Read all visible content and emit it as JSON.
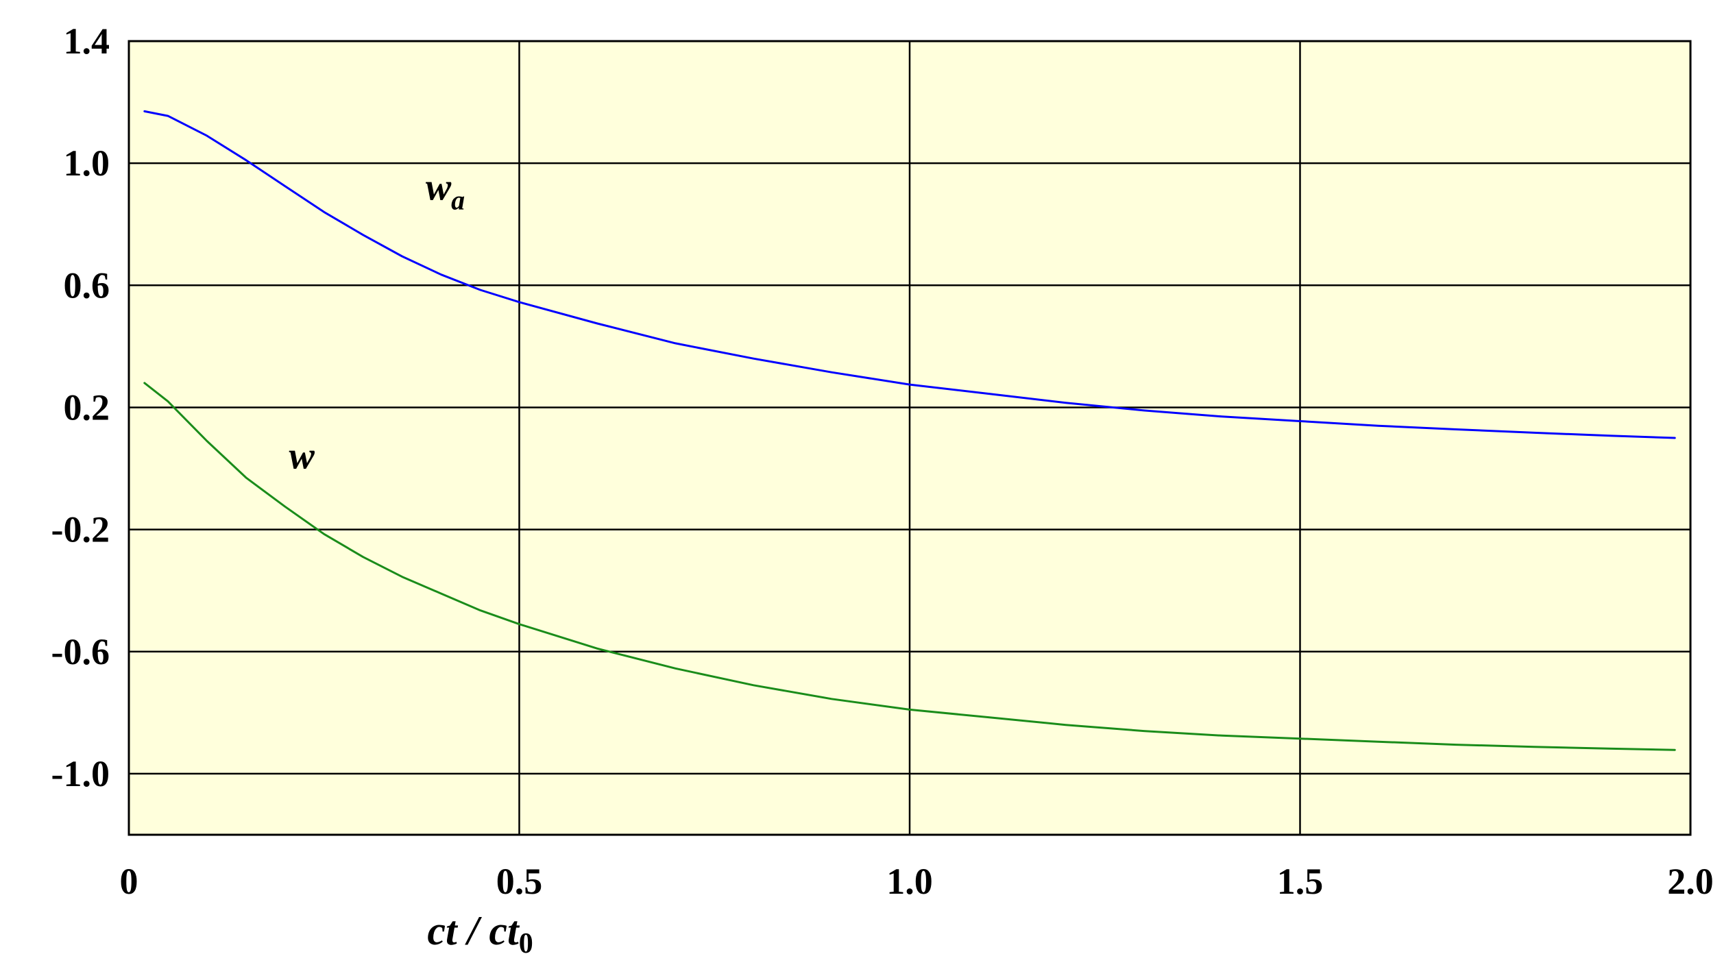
{
  "chart_data": {
    "type": "line",
    "title": "",
    "xlabel": {
      "prefix": "ct / ct",
      "subscript": "0"
    },
    "ylabel": "",
    "xlim": [
      0,
      2.0
    ],
    "ylim": [
      -1.2,
      1.4
    ],
    "x_ticks": [
      {
        "value": 0,
        "label": "0"
      },
      {
        "value": 0.5,
        "label": "0.5"
      },
      {
        "value": 1.0,
        "label": "1.0"
      },
      {
        "value": 1.5,
        "label": "1.5"
      },
      {
        "value": 2.0,
        "label": "2.0"
      }
    ],
    "y_ticks": [
      {
        "value": 1.4,
        "label": "1.4"
      },
      {
        "value": 1.0,
        "label": "1.0"
      },
      {
        "value": 0.6,
        "label": "0.6"
      },
      {
        "value": 0.2,
        "label": "0.2"
      },
      {
        "value": -0.2,
        "label": "-0.2"
      },
      {
        "value": -0.6,
        "label": "-0.6"
      },
      {
        "value": -1.0,
        "label": "-1.0"
      }
    ],
    "grid": true,
    "background_color": "#ffffdc",
    "series": [
      {
        "name": "w",
        "name_subscript": "a",
        "color": "#0000ff",
        "label_anchor": {
          "x": 0.38,
          "y": 0.88
        },
        "points": [
          [
            0.02,
            1.17
          ],
          [
            0.05,
            1.155
          ],
          [
            0.1,
            1.09
          ],
          [
            0.15,
            1.01
          ],
          [
            0.2,
            0.925
          ],
          [
            0.25,
            0.84
          ],
          [
            0.3,
            0.765
          ],
          [
            0.35,
            0.695
          ],
          [
            0.4,
            0.635
          ],
          [
            0.45,
            0.585
          ],
          [
            0.5,
            0.545
          ],
          [
            0.6,
            0.475
          ],
          [
            0.7,
            0.41
          ],
          [
            0.8,
            0.36
          ],
          [
            0.9,
            0.315
          ],
          [
            1.0,
            0.275
          ],
          [
            1.1,
            0.245
          ],
          [
            1.2,
            0.215
          ],
          [
            1.3,
            0.19
          ],
          [
            1.4,
            0.17
          ],
          [
            1.5,
            0.155
          ],
          [
            1.6,
            0.14
          ],
          [
            1.7,
            0.128
          ],
          [
            1.8,
            0.117
          ],
          [
            1.9,
            0.107
          ],
          [
            1.98,
            0.1
          ]
        ]
      },
      {
        "name": "w",
        "name_subscript": "",
        "color": "#1a8c1a",
        "label_anchor": {
          "x": 0.205,
          "y": 0.0
        },
        "points": [
          [
            0.02,
            0.28
          ],
          [
            0.05,
            0.22
          ],
          [
            0.1,
            0.09
          ],
          [
            0.15,
            -0.03
          ],
          [
            0.2,
            -0.125
          ],
          [
            0.25,
            -0.215
          ],
          [
            0.3,
            -0.29
          ],
          [
            0.35,
            -0.355
          ],
          [
            0.4,
            -0.41
          ],
          [
            0.45,
            -0.465
          ],
          [
            0.5,
            -0.51
          ],
          [
            0.6,
            -0.59
          ],
          [
            0.7,
            -0.655
          ],
          [
            0.8,
            -0.71
          ],
          [
            0.9,
            -0.755
          ],
          [
            1.0,
            -0.79
          ],
          [
            1.1,
            -0.815
          ],
          [
            1.2,
            -0.84
          ],
          [
            1.3,
            -0.86
          ],
          [
            1.4,
            -0.875
          ],
          [
            1.5,
            -0.885
          ],
          [
            1.6,
            -0.895
          ],
          [
            1.7,
            -0.905
          ],
          [
            1.8,
            -0.912
          ],
          [
            1.9,
            -0.918
          ],
          [
            1.98,
            -0.922
          ]
        ]
      }
    ]
  }
}
